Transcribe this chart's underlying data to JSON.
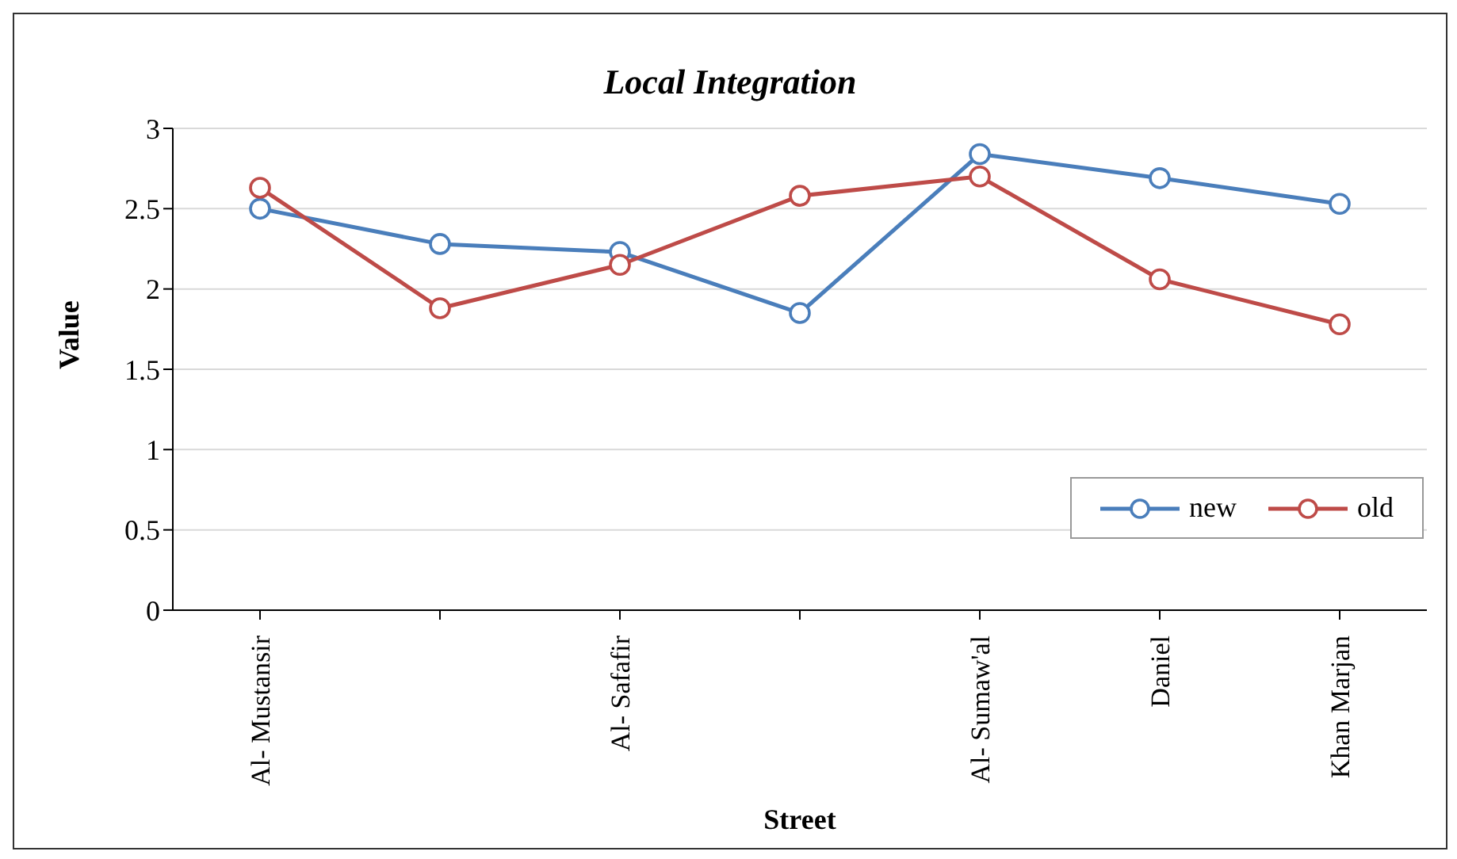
{
  "chart_data": {
    "type": "line",
    "title": "Local Integration",
    "xlabel": "Street",
    "ylabel": "Value",
    "categories": [
      "Al- Mustansir",
      null,
      "Al- Safafir",
      null,
      "Al- Sumaw'al",
      "Daniel",
      "Khan Marjan"
    ],
    "series": [
      {
        "name": "new",
        "color": "#4a7ebb",
        "values": [
          2.5,
          2.28,
          2.23,
          1.85,
          2.84,
          2.69,
          2.53
        ]
      },
      {
        "name": "old",
        "color": "#be4b48",
        "values": [
          2.63,
          1.88,
          2.15,
          2.58,
          2.7,
          2.06,
          1.78
        ]
      }
    ],
    "ylim": [
      0,
      3
    ],
    "yticks": [
      0,
      0.5,
      1,
      1.5,
      2,
      2.5,
      3
    ],
    "grid": "y",
    "legend": "bottom right",
    "marker": "circle",
    "line_style": "solid"
  }
}
